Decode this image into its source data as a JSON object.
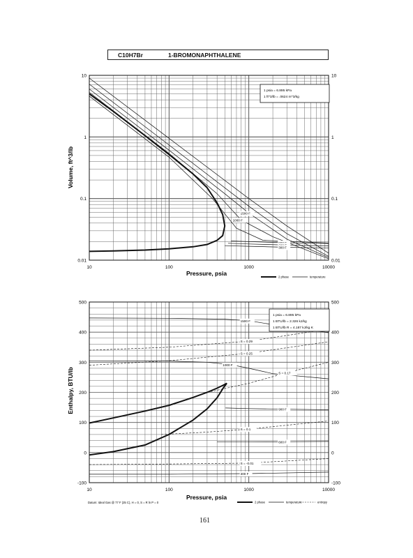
{
  "header": {
    "formula": "C10H7Br",
    "compound": "1-BROMONAPHTHALENE"
  },
  "page_number": "161",
  "chart_data": [
    {
      "type": "line",
      "title": "",
      "xlabel": "Pressure,  psia",
      "ylabel": "Volume, ft^3/lb",
      "xscale": "log",
      "yscale": "log",
      "xlim": [
        10,
        10000
      ],
      "ylim": [
        0.01,
        10
      ],
      "x_ticks": [
        "10",
        "100",
        "1000",
        "10000"
      ],
      "y_ticks": [
        "0.01",
        "0.1",
        "1",
        "10"
      ],
      "y_ticks_right": [
        "0.01",
        "0.1",
        "1",
        "10"
      ],
      "grid": true,
      "notes": [
        "1 psia = 6.895 kPa",
        "1 ft^3/lb = .0624 m^3/kg"
      ],
      "legend": [
        {
          "label": "2 phase",
          "style": "thick"
        },
        {
          "label": "temperature",
          "style": "thin"
        }
      ],
      "series": [
        {
          "kind": "2 phase",
          "x": [
            10,
            20,
            50,
            100,
            200,
            300,
            400,
            470,
            500,
            470,
            400,
            300,
            200,
            100,
            50,
            20,
            10
          ],
          "y": [
            5.0,
            2.6,
            1.05,
            0.52,
            0.25,
            0.15,
            0.085,
            0.055,
            0.036,
            0.025,
            0.021,
            0.018,
            0.0165,
            0.0153,
            0.0146,
            0.0141,
            0.0139
          ]
        },
        {
          "kind": "temperature",
          "x": [
            10,
            100,
            1000,
            3000,
            10000
          ],
          "y": [
            9.0,
            0.95,
            0.1,
            0.036,
            0.013
          ],
          "label": ""
        },
        {
          "kind": "temperature",
          "x": [
            10,
            100,
            1000,
            3000,
            10000
          ],
          "y": [
            7.2,
            0.74,
            0.075,
            0.027,
            0.0115
          ],
          "label": ""
        },
        {
          "kind": "temperature",
          "x": [
            10,
            100,
            500,
            1000,
            3000,
            10000
          ],
          "y": [
            6.0,
            0.61,
            0.12,
            0.058,
            0.022,
            0.011
          ],
          "label": "1500 F"
        },
        {
          "kind": "temperature",
          "x": [
            10,
            100,
            400,
            800,
            2000,
            10000
          ],
          "y": [
            5.3,
            0.54,
            0.12,
            0.045,
            0.024,
            0.0105
          ],
          "label": "1000 F"
        },
        {
          "kind": "temperature",
          "x": [
            10,
            100,
            350,
            700,
            1500,
            10000
          ],
          "y": [
            4.6,
            0.47,
            0.1,
            0.033,
            0.021,
            0.019
          ],
          "label": ""
        },
        {
          "kind": "temperature",
          "x": [
            600,
            1000,
            3000,
            10000
          ],
          "y": [
            0.0205,
            0.02,
            0.0192,
            0.0186
          ],
          "label": "900 F"
        },
        {
          "kind": "temperature",
          "x": [
            550,
            1000,
            3000,
            10000
          ],
          "y": [
            0.0188,
            0.0183,
            0.0176,
            0.017
          ],
          "label": "600 F"
        },
        {
          "kind": "temperature",
          "x": [
            500,
            1000,
            3000,
            10000
          ],
          "y": [
            0.0172,
            0.0168,
            0.0162,
            0.0157
          ],
          "label": "300 F"
        }
      ]
    },
    {
      "type": "line",
      "title": "",
      "xlabel": "Pressure,  psia",
      "ylabel": "Enthalpy, BTU/lb",
      "xscale": "log",
      "yscale": "linear",
      "xlim": [
        10,
        10000
      ],
      "ylim": [
        -100,
        500
      ],
      "x_ticks": [
        "10",
        "100",
        "1000",
        "10000"
      ],
      "y_ticks": [
        "-100",
        "0",
        "100",
        "200",
        "300",
        "400",
        "500"
      ],
      "y_ticks_right": [
        "-100",
        "0",
        "100",
        "200",
        "300",
        "400",
        "500"
      ],
      "grid": true,
      "notes": [
        "1 psia = 6.895 kPa",
        "1 BTU/lb = 2.326 kJ/kg",
        "1 BTU/lb R = 4.187 kJ/kg K"
      ],
      "footnote": "Datum: Ideal Gas @ 77 F (25 C),  H = 0,  S = R ln P = 0",
      "legend": [
        {
          "label": "2 phase",
          "style": "thick"
        },
        {
          "label": "temperature",
          "style": "thin"
        },
        {
          "label": "entropy",
          "style": "dashed"
        }
      ],
      "series": [
        {
          "kind": "2 phase",
          "x": [
            10,
            20,
            50,
            100,
            200,
            300,
            400,
            480,
            530,
            480,
            400,
            300,
            200,
            100,
            50,
            20,
            10
          ],
          "y": [
            98,
            115,
            138,
            157,
            183,
            200,
            214,
            224,
            230,
            215,
            182,
            145,
            108,
            60,
            25,
            3,
            -8
          ]
        },
        {
          "kind": "temperature",
          "x": [
            10,
            100,
            500,
            1000,
            2000,
            10000
          ],
          "y": [
            447,
            446,
            443,
            438,
            425,
            398
          ],
          "label": "1500 F"
        },
        {
          "kind": "temperature",
          "x": [
            10,
            100,
            300,
            600,
            1000,
            2000,
            10000
          ],
          "y": [
            305,
            304,
            300,
            292,
            280,
            262,
            245
          ],
          "label": "1000 F"
        },
        {
          "kind": "temperature",
          "x": [
            510,
            1000,
            3000,
            10000
          ],
          "y": [
            148,
            146,
            144,
            142
          ],
          "label": "900 F"
        },
        {
          "kind": "temperature",
          "x": [
            400,
            1000,
            3000,
            10000
          ],
          "y": [
            35,
            35,
            36,
            37
          ],
          "label": "600 F"
        },
        {
          "kind": "temperature",
          "x": [
            10,
            100,
            1000,
            10000
          ],
          "y": [
            -72,
            -72,
            -70,
            -65
          ],
          "label": "300 F"
        },
        {
          "kind": "entropy",
          "x": [
            10,
            100,
            1000,
            10000
          ],
          "y": [
            340,
            350,
            370,
            410
          ],
          "label": "S = 0.29"
        },
        {
          "kind": "entropy",
          "x": [
            10,
            100,
            1000,
            10000
          ],
          "y": [
            290,
            305,
            330,
            368
          ],
          "label": "S = 0.25"
        },
        {
          "kind": "entropy",
          "x": [
            300,
            1000,
            3000,
            10000
          ],
          "y": [
            200,
            230,
            265,
            300
          ],
          "label": "S = 0.17"
        },
        {
          "kind": "entropy",
          "x": [
            80,
            300,
            1000,
            10000
          ],
          "y": [
            60,
            68,
            78,
            105
          ],
          "label": "S = 0.1"
        },
        {
          "kind": "entropy",
          "x": [
            10,
            100,
            1000,
            10000
          ],
          "y": [
            -40,
            -38,
            -35,
            -20
          ],
          "label": "S = -0.01"
        }
      ]
    }
  ]
}
